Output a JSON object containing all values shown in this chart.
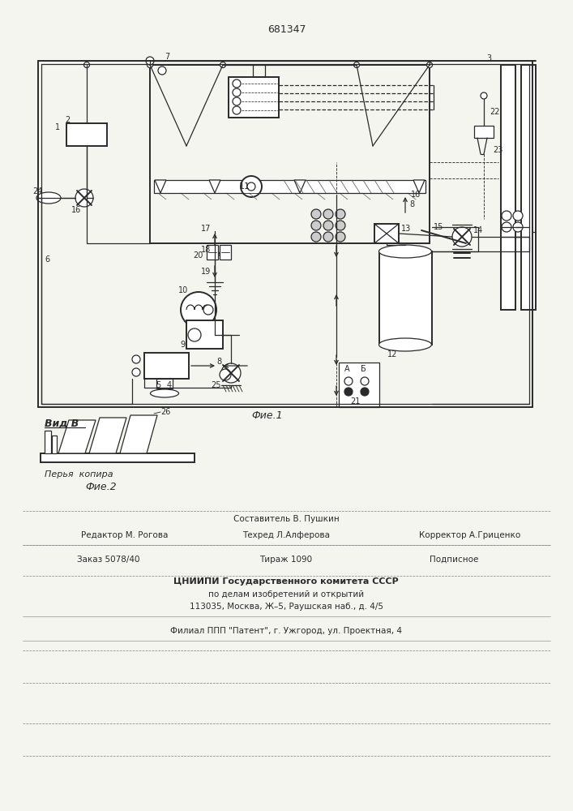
{
  "title": "681347",
  "fig1_label": "Фие.1",
  "fig2_label": "Фие.2",
  "vid_label": "Вид В",
  "kopir_label": "Перья  копира",
  "editor_line": "Редактор М. Рогова",
  "composer_line": "Составитель В. Пушкин",
  "techred_line": "Техред Л.Алферова",
  "corrector_line": "Корректор А.Гриценко",
  "order_line": "Заказ 5078/40",
  "tirazh_line": "Тираж 1090",
  "podpisnoe_line": "Подписное",
  "cniipи_line": "ЦНИИПИ Государственного комитета СССР",
  "address1_line": "по делам изобретений и открытий",
  "address2_line": "113035, Москва, Ж–5, Раушская наб., д. 4/5",
  "filial_line": "Филиал ППП \"Патент\", г. Ужгород, ул. Проектная, 4",
  "bg_color": "#f5f5f0",
  "line_color": "#2a2a2a"
}
